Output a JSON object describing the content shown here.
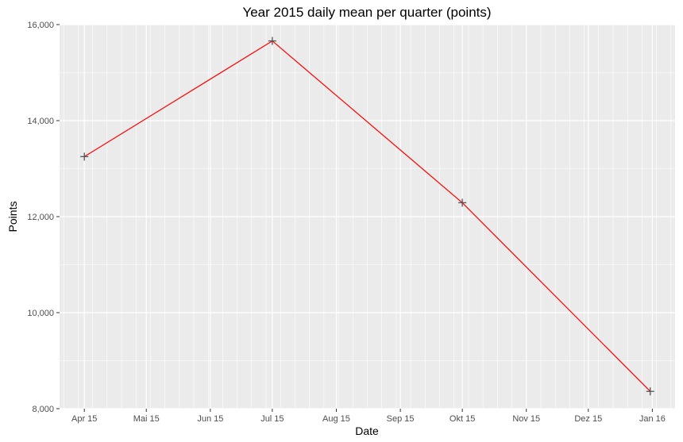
{
  "chart_data": {
    "type": "line",
    "title": "Year 2015 daily mean per quarter (points)",
    "xlabel": "Date",
    "ylabel": "Points",
    "x_ticks": [
      {
        "date": "2015-04-01",
        "label": "Apr 15"
      },
      {
        "date": "2015-05-01",
        "label": "Mai 15"
      },
      {
        "date": "2015-06-01",
        "label": "Jun 15"
      },
      {
        "date": "2015-07-01",
        "label": "Jul 15"
      },
      {
        "date": "2015-08-01",
        "label": "Aug 15"
      },
      {
        "date": "2015-09-01",
        "label": "Sep 15"
      },
      {
        "date": "2015-10-01",
        "label": "Okt 15"
      },
      {
        "date": "2015-11-01",
        "label": "Nov 15"
      },
      {
        "date": "2015-12-01",
        "label": "Dez 15"
      },
      {
        "date": "2016-01-01",
        "label": "Jan 16"
      }
    ],
    "y_ticks": [
      {
        "value": 8000,
        "label": "8,000"
      },
      {
        "value": 10000,
        "label": "10,000"
      },
      {
        "value": 12000,
        "label": "12,000"
      },
      {
        "value": 14000,
        "label": "14,000"
      },
      {
        "value": 16000,
        "label": "16,000"
      }
    ],
    "xlim": [
      "2015-03-20",
      "2016-01-12"
    ],
    "ylim": [
      8000,
      16000
    ],
    "points": [
      {
        "x": "2015-04-01",
        "y": 13250
      },
      {
        "x": "2015-07-01",
        "y": 15660
      },
      {
        "x": "2015-10-01",
        "y": 12290
      },
      {
        "x": "2015-12-31",
        "y": 8360
      }
    ],
    "grid": true,
    "line_color": "#ff0000",
    "point_color": "#555555",
    "panel_color": "#ebebeb",
    "grid_color": "#ffffff"
  }
}
